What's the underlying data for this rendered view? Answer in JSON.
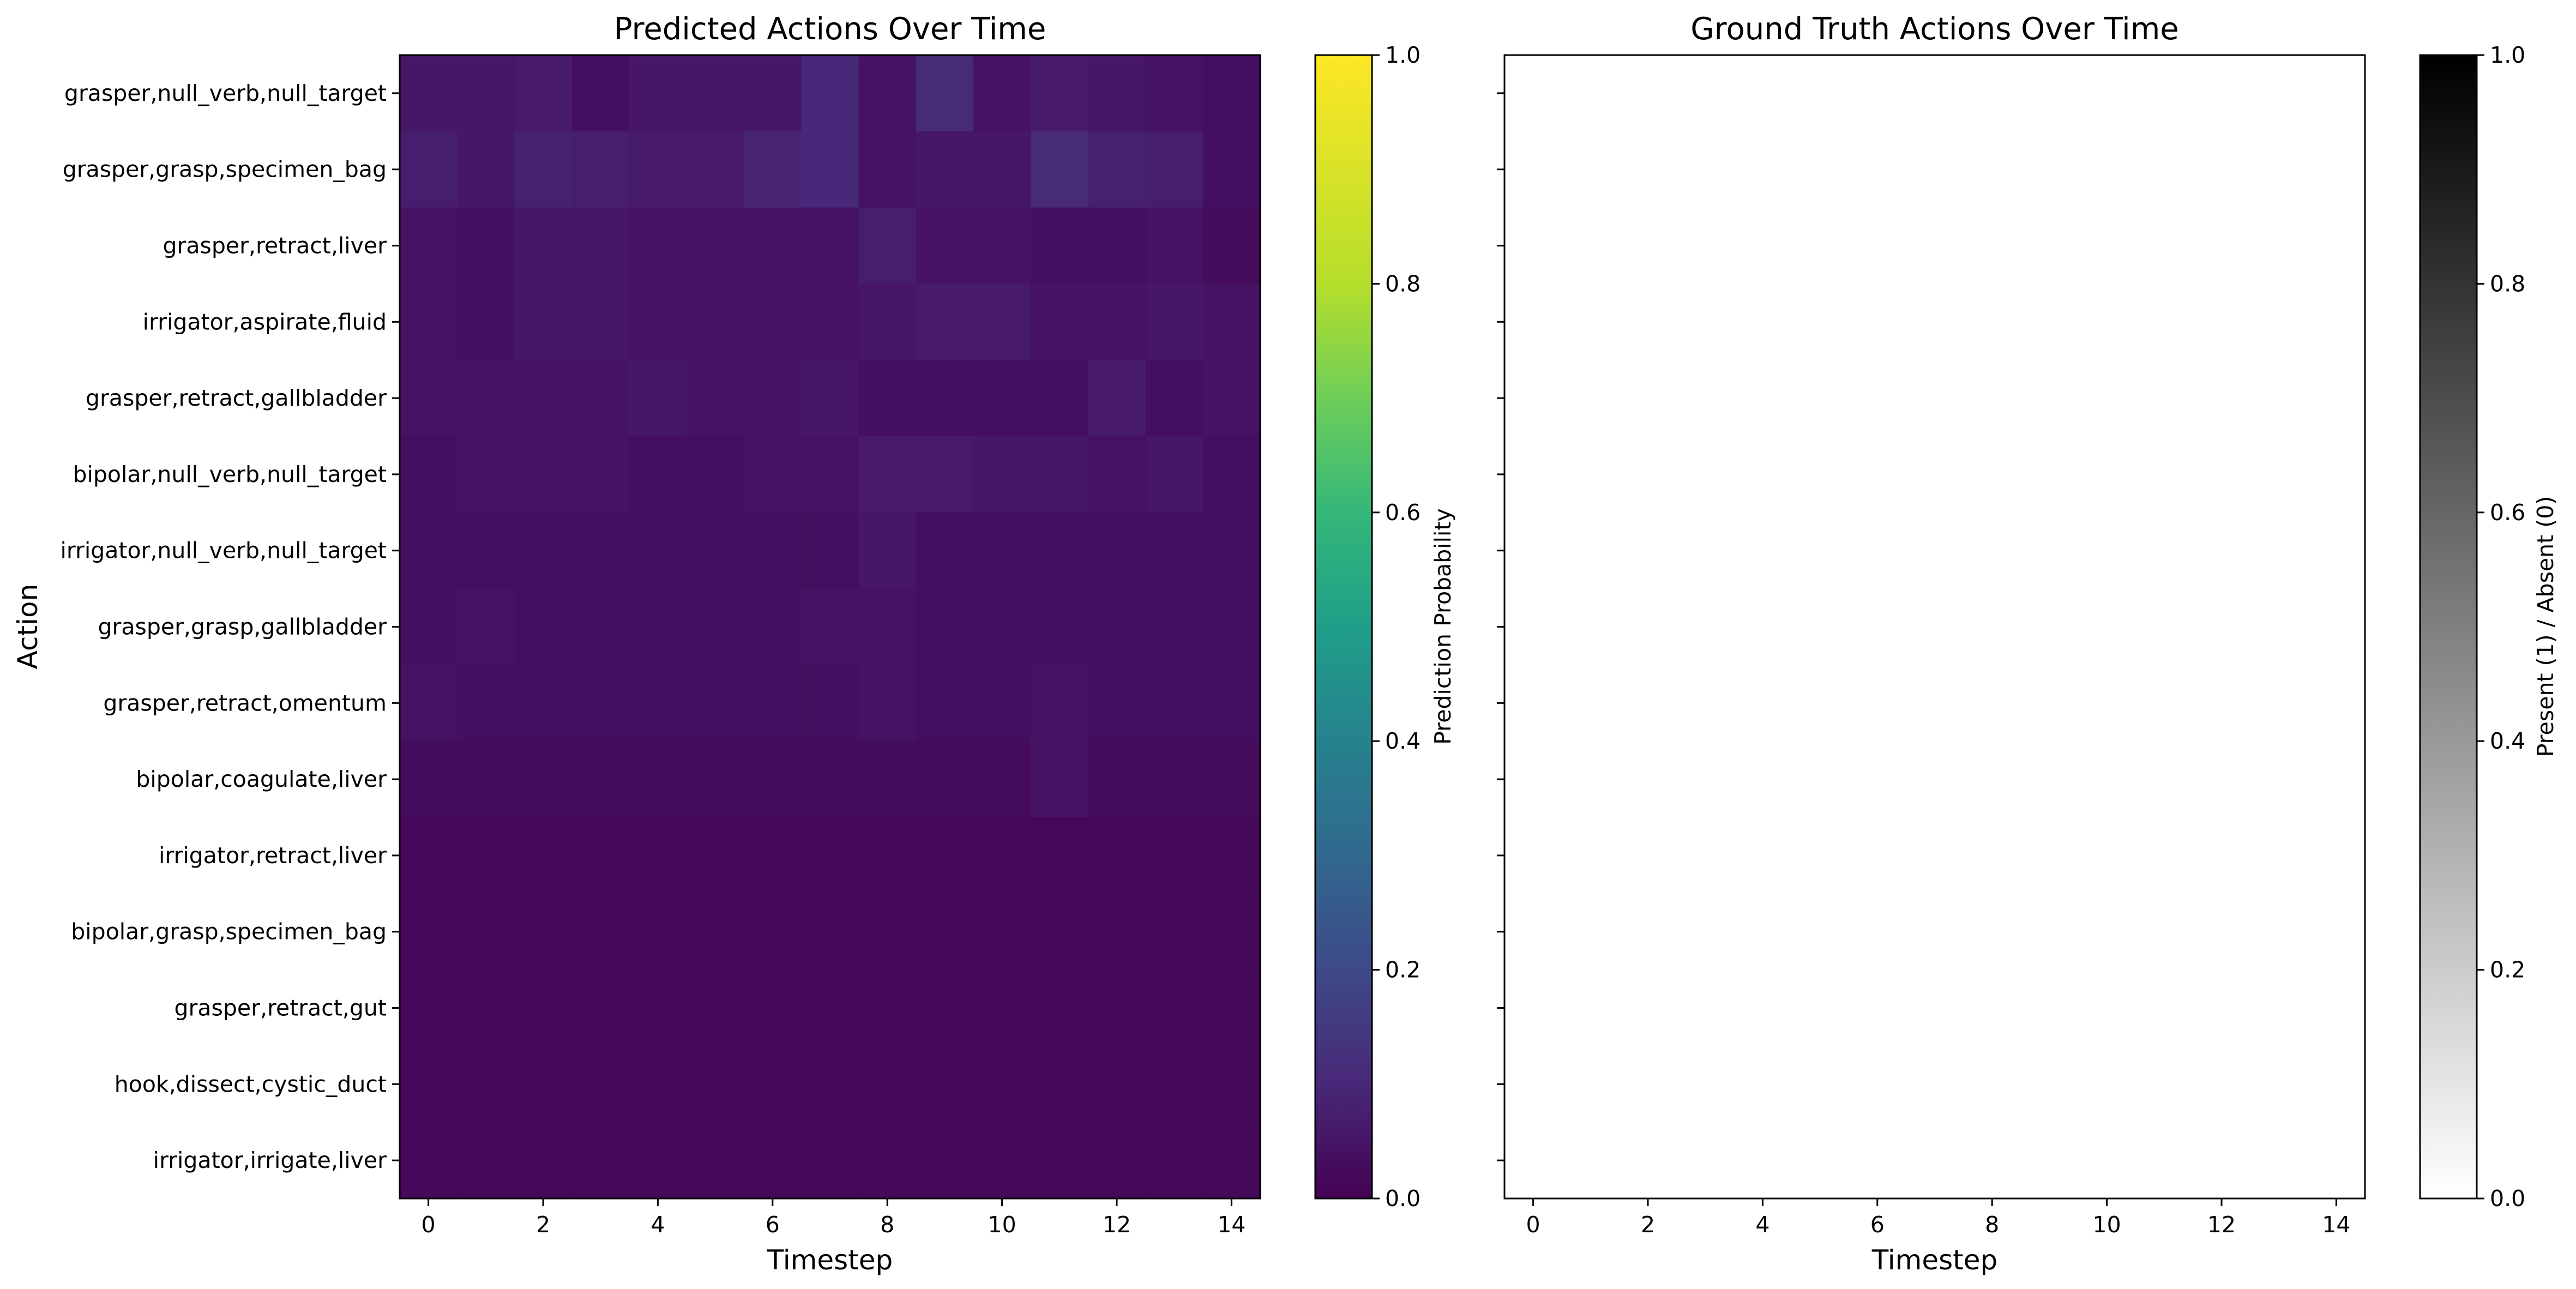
{
  "colors": {
    "viridis_low": "#440154",
    "viridis_high": "#fde725",
    "gray_low": "#ffffff",
    "gray_high": "#000000",
    "axis": "#000000"
  },
  "chart_data": [
    {
      "type": "heatmap",
      "title": "Predicted Actions Over Time",
      "xlabel": "Timestep",
      "ylabel": "Action",
      "colormap": "viridis",
      "vlim": [
        0,
        1
      ],
      "colorbar_label": "Prediction Probability",
      "colorbar_ticks": [
        "0.0",
        "0.2",
        "0.4",
        "0.6",
        "0.8",
        "1.0"
      ],
      "x": [
        0,
        1,
        2,
        3,
        4,
        5,
        6,
        7,
        8,
        9,
        10,
        11,
        12,
        13,
        14
      ],
      "x_ticks": [
        "0",
        "2",
        "4",
        "6",
        "8",
        "10",
        "12",
        "14"
      ],
      "categories": [
        "grasper,null_verb,null_target",
        "grasper,grasp,specimen_bag",
        "grasper,retract,liver",
        "irrigator,aspirate,fluid",
        "grasper,retract,gallbladder",
        "bipolar,null_verb,null_target",
        "irrigator,null_verb,null_target",
        "grasper,grasp,gallbladder",
        "grasper,retract,omentum",
        "bipolar,coagulate,liver",
        "irrigator,retract,liver",
        "bipolar,grasp,specimen_bag",
        "grasper,retract,gut",
        "hook,dissect,cystic_duct",
        "irrigator,irrigate,liver"
      ],
      "values": [
        [
          0.06,
          0.06,
          0.07,
          0.04,
          0.06,
          0.06,
          0.06,
          0.11,
          0.05,
          0.12,
          0.05,
          0.07,
          0.06,
          0.05,
          0.04
        ],
        [
          0.08,
          0.06,
          0.09,
          0.08,
          0.07,
          0.07,
          0.1,
          0.11,
          0.05,
          0.06,
          0.06,
          0.12,
          0.09,
          0.08,
          0.04
        ],
        [
          0.05,
          0.04,
          0.06,
          0.06,
          0.05,
          0.05,
          0.05,
          0.05,
          0.08,
          0.05,
          0.05,
          0.04,
          0.04,
          0.05,
          0.03
        ],
        [
          0.05,
          0.04,
          0.06,
          0.06,
          0.05,
          0.05,
          0.05,
          0.05,
          0.06,
          0.07,
          0.07,
          0.05,
          0.05,
          0.06,
          0.05
        ],
        [
          0.05,
          0.05,
          0.05,
          0.05,
          0.06,
          0.05,
          0.05,
          0.06,
          0.04,
          0.04,
          0.04,
          0.04,
          0.07,
          0.04,
          0.05
        ],
        [
          0.04,
          0.05,
          0.05,
          0.05,
          0.04,
          0.04,
          0.05,
          0.05,
          0.07,
          0.07,
          0.06,
          0.06,
          0.05,
          0.06,
          0.04
        ],
        [
          0.04,
          0.04,
          0.04,
          0.04,
          0.04,
          0.04,
          0.04,
          0.04,
          0.06,
          0.04,
          0.04,
          0.04,
          0.04,
          0.04,
          0.04
        ],
        [
          0.04,
          0.05,
          0.04,
          0.04,
          0.04,
          0.04,
          0.04,
          0.05,
          0.05,
          0.04,
          0.04,
          0.04,
          0.04,
          0.04,
          0.04
        ],
        [
          0.05,
          0.04,
          0.04,
          0.04,
          0.04,
          0.04,
          0.04,
          0.04,
          0.05,
          0.04,
          0.04,
          0.05,
          0.04,
          0.04,
          0.04
        ],
        [
          0.03,
          0.03,
          0.03,
          0.03,
          0.03,
          0.03,
          0.03,
          0.03,
          0.03,
          0.03,
          0.03,
          0.05,
          0.03,
          0.03,
          0.03
        ],
        [
          0.02,
          0.02,
          0.02,
          0.02,
          0.02,
          0.02,
          0.02,
          0.02,
          0.02,
          0.02,
          0.02,
          0.02,
          0.02,
          0.02,
          0.02
        ],
        [
          0.02,
          0.02,
          0.02,
          0.02,
          0.02,
          0.02,
          0.02,
          0.02,
          0.02,
          0.02,
          0.02,
          0.02,
          0.02,
          0.02,
          0.02
        ],
        [
          0.02,
          0.02,
          0.02,
          0.02,
          0.02,
          0.02,
          0.02,
          0.02,
          0.02,
          0.02,
          0.02,
          0.02,
          0.02,
          0.02,
          0.02
        ],
        [
          0.02,
          0.02,
          0.02,
          0.02,
          0.02,
          0.02,
          0.02,
          0.02,
          0.02,
          0.02,
          0.02,
          0.02,
          0.02,
          0.02,
          0.02
        ],
        [
          0.02,
          0.02,
          0.02,
          0.02,
          0.02,
          0.02,
          0.02,
          0.02,
          0.02,
          0.02,
          0.02,
          0.02,
          0.02,
          0.02,
          0.02
        ]
      ]
    },
    {
      "type": "heatmap",
      "title": "Ground Truth Actions Over Time",
      "xlabel": "Timestep",
      "colormap": "Greys",
      "vlim": [
        0,
        1
      ],
      "colorbar_label": "Present (1) / Absent (0)",
      "colorbar_ticks": [
        "0.0",
        "0.2",
        "0.4",
        "0.6",
        "0.8",
        "1.0"
      ],
      "x": [
        0,
        1,
        2,
        3,
        4,
        5,
        6,
        7,
        8,
        9,
        10,
        11,
        12,
        13,
        14
      ],
      "x_ticks": [
        "0",
        "2",
        "4",
        "6",
        "8",
        "10",
        "12",
        "14"
      ],
      "shared_y_with_first": true,
      "values": [
        [
          0,
          0,
          0,
          0,
          0,
          0,
          0,
          0,
          0,
          0,
          0,
          0,
          0,
          0,
          0
        ],
        [
          0,
          0,
          0,
          0,
          0,
          0,
          0,
          0,
          0,
          0,
          0,
          0,
          0,
          0,
          0
        ],
        [
          0,
          0,
          0,
          0,
          0,
          0,
          0,
          0,
          0,
          0,
          0,
          0,
          0,
          0,
          0
        ],
        [
          0,
          0,
          0,
          0,
          0,
          0,
          0,
          0,
          0,
          0,
          0,
          0,
          0,
          0,
          0
        ],
        [
          0,
          0,
          0,
          0,
          0,
          0,
          0,
          0,
          0,
          0,
          0,
          0,
          0,
          0,
          0
        ],
        [
          0,
          0,
          0,
          0,
          0,
          0,
          0,
          0,
          0,
          0,
          0,
          0,
          0,
          0,
          0
        ],
        [
          0,
          0,
          0,
          0,
          0,
          0,
          0,
          0,
          0,
          0,
          0,
          0,
          0,
          0,
          0
        ],
        [
          0,
          0,
          0,
          0,
          0,
          0,
          0,
          0,
          0,
          0,
          0,
          0,
          0,
          0,
          0
        ],
        [
          0,
          0,
          0,
          0,
          0,
          0,
          0,
          0,
          0,
          0,
          0,
          0,
          0,
          0,
          0
        ],
        [
          0,
          0,
          0,
          0,
          0,
          0,
          0,
          0,
          0,
          0,
          0,
          0,
          0,
          0,
          0
        ],
        [
          0,
          0,
          0,
          0,
          0,
          0,
          0,
          0,
          0,
          0,
          0,
          0,
          0,
          0,
          0
        ],
        [
          0,
          0,
          0,
          0,
          0,
          0,
          0,
          0,
          0,
          0,
          0,
          0,
          0,
          0,
          0
        ],
        [
          0,
          0,
          0,
          0,
          0,
          0,
          0,
          0,
          0,
          0,
          0,
          0,
          0,
          0,
          0
        ],
        [
          0,
          0,
          0,
          0,
          0,
          0,
          0,
          0,
          0,
          0,
          0,
          0,
          0,
          0,
          0
        ],
        [
          0,
          0,
          0,
          0,
          0,
          0,
          0,
          0,
          0,
          0,
          0,
          0,
          0,
          0,
          0
        ]
      ]
    }
  ]
}
